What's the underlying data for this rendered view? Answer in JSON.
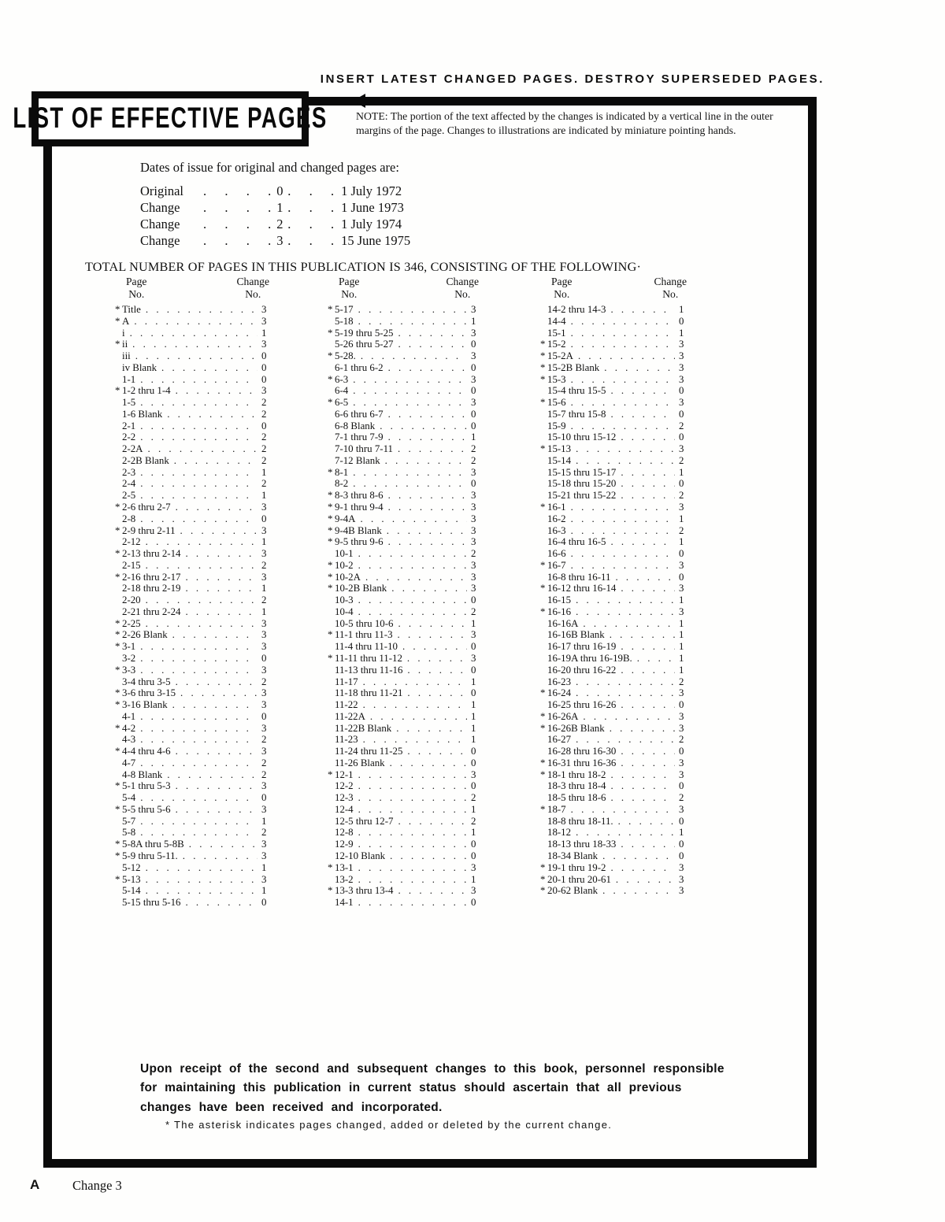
{
  "page": {
    "top_banner": "INSERT LATEST CHANGED PAGES. DESTROY SUPERSEDED PAGES.",
    "title": "LIST OF EFFECTIVE PAGES",
    "note": "NOTE:  The portion of the text affected by the changes is indicated by a vertical line in the outer margins of the page.  Changes to illustrations are indicated by miniature pointing hands.",
    "dates_intro": "Dates of issue for original and changed pages are:",
    "date_lines": [
      {
        "label": "Original",
        "num": "0",
        "date": "1 July 1972"
      },
      {
        "label": "Change",
        "num": "1",
        "date": "1 June 1973"
      },
      {
        "label": "Change",
        "num": "2",
        "date": "1 July 1974"
      },
      {
        "label": "Change",
        "num": "3",
        "date": "15 June 1975"
      }
    ],
    "total_line": "TOTAL NUMBER OF PAGES IN THIS PUBLICATION IS 346, CONSISTING OF THE FOLLOWING·",
    "footer_note_para": "Upon receipt of the second and subsequent changes to this book, personnel responsible for maintaining this publication in current status should ascertain that all previous changes have been received and incorporated.",
    "asterisk_note": "* The asterisk indicates pages changed, added or deleted by the current change.",
    "footer_left": "A",
    "footer_page": "Change 3"
  },
  "table": {
    "headers": {
      "page": "Page",
      "change": "Change",
      "no": "No."
    },
    "columns": [
      [
        [
          "*Title",
          "3"
        ],
        [
          "*A",
          "3"
        ],
        [
          "i",
          "1"
        ],
        [
          "*ii",
          "3"
        ],
        [
          "iii",
          "0"
        ],
        [
          "iv Blank",
          "0"
        ],
        [
          "1-1",
          "0"
        ],
        [
          "*1-2 thru 1-4",
          "3"
        ],
        [
          "1-5",
          "2"
        ],
        [
          "1-6 Blank",
          "2"
        ],
        [
          "2-1",
          "0"
        ],
        [
          "2-2",
          "2"
        ],
        [
          "2-2A",
          "2"
        ],
        [
          "2-2B Blank",
          "2"
        ],
        [
          "2-3",
          "1"
        ],
        [
          "2-4",
          "2"
        ],
        [
          "2-5",
          "1"
        ],
        [
          "*2-6 thru 2-7",
          "3"
        ],
        [
          "2-8",
          "0"
        ],
        [
          "*2-9 thru 2-11",
          "3"
        ],
        [
          "2-12",
          "1"
        ],
        [
          "*2-13 thru 2-14",
          "3"
        ],
        [
          "2-15",
          "2"
        ],
        [
          "*2-16 thru 2-17",
          "3"
        ],
        [
          "2-18 thru 2-19",
          "1"
        ],
        [
          "2-20",
          "2"
        ],
        [
          "2-21 thru 2-24",
          "1"
        ],
        [
          "*2-25",
          "3"
        ],
        [
          "*2-26 Blank",
          "3"
        ],
        [
          "*3-1",
          "3"
        ],
        [
          "3-2",
          "0"
        ],
        [
          "*3-3",
          "3"
        ],
        [
          "3-4 thru 3-5",
          "2"
        ],
        [
          "*3-6 thru 3-15",
          "3"
        ],
        [
          "*3-16 Blank",
          "3"
        ],
        [
          "4-1",
          "0"
        ],
        [
          "*4-2",
          "3"
        ],
        [
          "4-3",
          "2"
        ],
        [
          "*4-4 thru 4-6",
          "3"
        ],
        [
          "4-7",
          "2"
        ],
        [
          "4-8 Blank",
          "2"
        ],
        [
          "*5-1 thru 5-3",
          "3"
        ],
        [
          "5-4",
          "0"
        ],
        [
          "*5-5 thru 5-6",
          "3"
        ],
        [
          "5-7",
          "1"
        ],
        [
          "5-8",
          "2"
        ],
        [
          "*5-8A thru 5-8B",
          "3"
        ],
        [
          "*5-9 thru 5-11.",
          "3"
        ],
        [
          "5-12",
          "1"
        ],
        [
          "*5-13",
          "3"
        ],
        [
          "5-14",
          "1"
        ],
        [
          "5-15 thru 5-16",
          "0"
        ]
      ],
      [
        [
          "*5-17",
          "3"
        ],
        [
          "5-18",
          "1"
        ],
        [
          "*5-19 thru 5-25",
          "3"
        ],
        [
          "5-26 thru 5-27",
          "0"
        ],
        [
          "*5-28.",
          "3"
        ],
        [
          "6-1 thru 6-2",
          "0"
        ],
        [
          "*6-3",
          "3"
        ],
        [
          "6-4",
          "0"
        ],
        [
          "*6-5",
          "3"
        ],
        [
          "6-6 thru 6-7",
          "0"
        ],
        [
          "6-8 Blank",
          "0"
        ],
        [
          "7-1 thru 7-9",
          "1"
        ],
        [
          "7-10 thru 7-11",
          "2"
        ],
        [
          "7-12 Blank",
          "2"
        ],
        [
          "*8-1",
          "3"
        ],
        [
          "8-2",
          "0"
        ],
        [
          "*8-3 thru 8-6",
          "3"
        ],
        [
          "*9-1 thru 9-4",
          "3"
        ],
        [
          "*9-4A",
          "3"
        ],
        [
          "*9-4B Blank",
          "3"
        ],
        [
          "*9-5 thru 9-6",
          "3"
        ],
        [
          "10-1",
          "2"
        ],
        [
          "*10-2",
          "3"
        ],
        [
          "*10-2A",
          "3"
        ],
        [
          "*10-2B Blank",
          "3"
        ],
        [
          "10-3",
          "0"
        ],
        [
          "10-4",
          "2"
        ],
        [
          "10-5 thru 10-6",
          "1"
        ],
        [
          "*11-1 thru 11-3",
          "3"
        ],
        [
          "11-4 thru 11-10",
          "0"
        ],
        [
          "*11-11 thru 11-12",
          "3"
        ],
        [
          "11-13 thru 11-16",
          "0"
        ],
        [
          "11-17",
          "1"
        ],
        [
          "11-18 thru 11-21",
          "0"
        ],
        [
          "11-22",
          "1"
        ],
        [
          "11-22A",
          "1"
        ],
        [
          "11-22B Blank",
          "1"
        ],
        [
          "11-23",
          "1"
        ],
        [
          "11-24 thru 11-25",
          "0"
        ],
        [
          "11-26 Blank",
          "0"
        ],
        [
          "*12-1",
          "3"
        ],
        [
          "12-2",
          "0"
        ],
        [
          "12-3",
          "2"
        ],
        [
          "12-4",
          "1"
        ],
        [
          "12-5 thru 12-7",
          "2"
        ],
        [
          "12-8",
          "1"
        ],
        [
          "12-9",
          "0"
        ],
        [
          "12-10 Blank",
          "0"
        ],
        [
          "*13-1",
          "3"
        ],
        [
          "13-2",
          "1"
        ],
        [
          "*13-3 thru 13-4",
          "3"
        ],
        [
          "14-1",
          "0"
        ]
      ],
      [
        [
          "14-2 thru 14-3",
          "1"
        ],
        [
          "14-4",
          "0"
        ],
        [
          "15-1",
          "1"
        ],
        [
          "*15-2",
          "3"
        ],
        [
          "*15-2A",
          "3"
        ],
        [
          "*15-2B Blank",
          "3"
        ],
        [
          "*15-3",
          "3"
        ],
        [
          "15-4 thru 15-5",
          "0"
        ],
        [
          "*15-6",
          "3"
        ],
        [
          "15-7 thru 15-8",
          "0"
        ],
        [
          "15-9",
          "2"
        ],
        [
          "15-10 thru 15-12",
          "0"
        ],
        [
          "*15-13",
          "3"
        ],
        [
          "15-14",
          "2"
        ],
        [
          "15-15 thru 15-17",
          "1"
        ],
        [
          "15-18 thru 15-20",
          "0"
        ],
        [
          "15-21 thru 15-22",
          "2"
        ],
        [
          "*16-1",
          "3"
        ],
        [
          "16-2",
          "1"
        ],
        [
          "16-3",
          "2"
        ],
        [
          "16-4 thru 16-5",
          "1"
        ],
        [
          "16-6",
          "0"
        ],
        [
          "*16-7",
          "3"
        ],
        [
          "16-8 thru 16-11",
          "0"
        ],
        [
          "*16-12 thru 16-14",
          "3"
        ],
        [
          "16-15",
          "1"
        ],
        [
          "*16-16",
          "3"
        ],
        [
          "16-16A",
          "1"
        ],
        [
          "16-16B Blank",
          "1"
        ],
        [
          "16-17 thru 16-19",
          "1"
        ],
        [
          "16-19A thru 16-19B.",
          "1"
        ],
        [
          "16-20 thru 16-22",
          "1"
        ],
        [
          "16-23",
          "2"
        ],
        [
          "*16-24",
          "3"
        ],
        [
          "16-25 thru 16-26",
          "0"
        ],
        [
          "*16-26A",
          "3"
        ],
        [
          "*16-26B Blank",
          "3"
        ],
        [
          "16-27",
          "2"
        ],
        [
          "16-28 thru 16-30",
          "0"
        ],
        [
          "*16-31 thru 16-36",
          "3"
        ],
        [
          "*18-1 thru 18-2",
          "3"
        ],
        [
          "18-3 thru 18-4",
          "0"
        ],
        [
          "18-5 thru 18-6",
          "2"
        ],
        [
          "*18-7",
          "3"
        ],
        [
          "18-8 thru 18-11.",
          "0"
        ],
        [
          "18-12",
          "1"
        ],
        [
          "18-13 thru 18-33",
          "0"
        ],
        [
          "18-34 Blank",
          "0"
        ],
        [
          "*19-1 thru 19-2",
          "3"
        ],
        [
          "*20-1 thru 20-61",
          "3"
        ],
        [
          "*20-62 Blank",
          "3"
        ]
      ]
    ]
  }
}
